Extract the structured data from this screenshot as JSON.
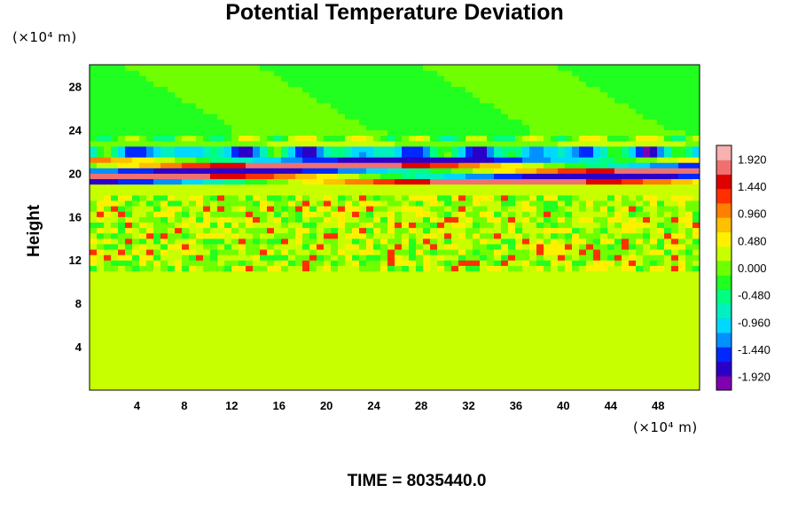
{
  "chart_data": {
    "type": "heatmap",
    "title": "Potential Temperature Deviation",
    "ylabel": "Height",
    "x_unit": "(×10⁴ m)",
    "y_unit": "(×10⁴ m)",
    "footer": "TIME = 8035440.0",
    "xlim": [
      0,
      51.5
    ],
    "ylim": [
      0,
      30
    ],
    "x_ticks": [
      4,
      8,
      12,
      16,
      20,
      24,
      28,
      32,
      36,
      40,
      44,
      48
    ],
    "y_ticks": [
      4,
      8,
      12,
      16,
      20,
      24,
      28
    ],
    "colorbar": {
      "min": -2.16,
      "max": 2.16,
      "tick_labels": [
        "1.920",
        "1.440",
        "0.960",
        "0.480",
        "0.000",
        "-0.480",
        "-0.960",
        "-1.440",
        "-1.920"
      ],
      "colors": [
        "#7f00b0",
        "#2a00c8",
        "#0028ff",
        "#0090ff",
        "#00d8ff",
        "#00f0c0",
        "#00ff80",
        "#20ff20",
        "#70ff00",
        "#c8ff00",
        "#fff000",
        "#ffc000",
        "#ff8000",
        "#ff3000",
        "#e00000",
        "#f07070",
        "#f8b0b0"
      ]
    },
    "field_features": {
      "background_value": 0.2,
      "strong_layer_height_range": [
        19.5,
        21.5
      ],
      "strong_layer_min": -1.9,
      "strong_layer_max": 1.9,
      "upper_layer_value": -0.5,
      "noisy_band_height_range": [
        11,
        18
      ]
    }
  }
}
